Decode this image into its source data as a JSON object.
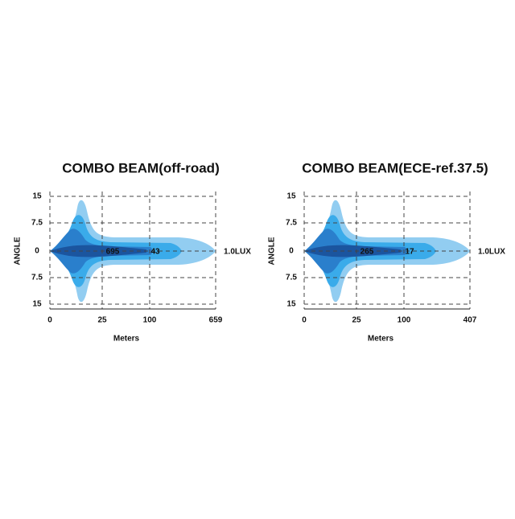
{
  "panels": [
    {
      "title": "COMBO  BEAM(off-road)",
      "y_axis_label": "ANGLE",
      "y_labels": [
        "15",
        "7.5",
        "0",
        "7.5",
        "15"
      ],
      "x_labels": [
        "0",
        "25",
        "100",
        "659"
      ],
      "x_axis_label": "Meters",
      "beam_labels": [
        "695",
        "43"
      ],
      "lux_label": "1.0LUX"
    },
    {
      "title": "COMBO  BEAM(ECE-ref.37.5)",
      "y_axis_label": "ANGLE",
      "y_labels": [
        "15",
        "7.5",
        "0",
        "7.5",
        "15"
      ],
      "x_labels": [
        "0",
        "25",
        "100",
        "407"
      ],
      "x_axis_label": "Meters",
      "beam_labels": [
        "265",
        "17"
      ],
      "lux_label": "1.0LUX"
    }
  ]
}
